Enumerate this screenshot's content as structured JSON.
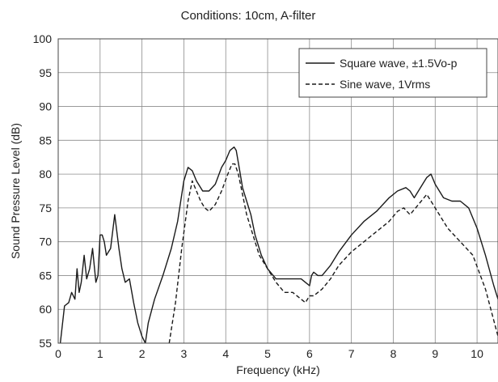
{
  "chart_data": {
    "type": "line",
    "title": "Conditions: 10cm, A-filter",
    "xlabel": "Frequency (kHz)",
    "ylabel": "Sound Pressure Level (dB)",
    "xlim": [
      0,
      10.5
    ],
    "ylim": [
      55,
      100
    ],
    "x_ticks": [
      0,
      1,
      2,
      3,
      4,
      5,
      6,
      7,
      8,
      9,
      10
    ],
    "y_ticks": [
      55,
      60,
      65,
      70,
      75,
      80,
      85,
      90,
      95,
      100
    ],
    "grid": true,
    "legend_position": "top-right",
    "series": [
      {
        "name": "Square wave, ±1.5Vo-p",
        "line_style": "solid",
        "color": "#1a1a1a",
        "x": [
          0.05,
          0.15,
          0.25,
          0.32,
          0.4,
          0.45,
          0.5,
          0.55,
          0.62,
          0.68,
          0.75,
          0.82,
          0.9,
          0.95,
          1.0,
          1.05,
          1.1,
          1.15,
          1.25,
          1.35,
          1.45,
          1.52,
          1.6,
          1.7,
          1.8,
          1.9,
          2.0,
          2.08,
          2.15,
          2.3,
          2.5,
          2.7,
          2.85,
          3.0,
          3.1,
          3.2,
          3.3,
          3.45,
          3.6,
          3.75,
          3.9,
          4.0,
          4.1,
          4.2,
          4.25,
          4.32,
          4.4,
          4.5,
          4.6,
          4.7,
          4.85,
          5.0,
          5.2,
          5.4,
          5.6,
          5.8,
          5.9,
          6.0,
          6.05,
          6.1,
          6.2,
          6.3,
          6.5,
          6.7,
          7.0,
          7.3,
          7.6,
          7.9,
          8.1,
          8.3,
          8.4,
          8.5,
          8.7,
          8.8,
          8.9,
          9.0,
          9.2,
          9.4,
          9.6,
          9.8,
          10.0,
          10.2,
          10.4,
          10.5
        ],
        "y": [
          55,
          60.5,
          61,
          62.5,
          61.5,
          66,
          62.5,
          64,
          68,
          64.5,
          66,
          69,
          64,
          65,
          71,
          71,
          70,
          68,
          69,
          74,
          69,
          66,
          64,
          64.5,
          61,
          58,
          56,
          55,
          58,
          61.5,
          65,
          69,
          73,
          79,
          81,
          80.5,
          79,
          77.5,
          77.5,
          78.5,
          81,
          82,
          83.5,
          84,
          83.5,
          81,
          78,
          76,
          74,
          71,
          68,
          66,
          64.5,
          64.5,
          64.5,
          64.5,
          64,
          63.5,
          65,
          65.5,
          65,
          65,
          66.5,
          68.5,
          71,
          73,
          74.5,
          76.5,
          77.5,
          78,
          77.5,
          76.5,
          78.5,
          79.5,
          80,
          78.5,
          76.5,
          76,
          76,
          75,
          72,
          68,
          63.5,
          61.5
        ]
      },
      {
        "name": "Sine wave, 1Vrms",
        "line_style": "dashed",
        "color": "#1a1a1a",
        "x": [
          2.65,
          2.8,
          2.95,
          3.1,
          3.2,
          3.3,
          3.4,
          3.5,
          3.6,
          3.75,
          3.9,
          4.05,
          4.15,
          4.22,
          4.3,
          4.4,
          4.5,
          4.65,
          4.8,
          5.0,
          5.2,
          5.4,
          5.6,
          5.8,
          5.9,
          6.0,
          6.1,
          6.3,
          6.5,
          6.7,
          7.0,
          7.3,
          7.6,
          7.9,
          8.1,
          8.25,
          8.4,
          8.6,
          8.8,
          9.0,
          9.3,
          9.6,
          9.9,
          10.2,
          10.5
        ],
        "y": [
          55,
          61,
          69,
          76,
          79,
          77.5,
          76,
          75,
          74.5,
          75.5,
          77.5,
          80,
          81.5,
          81.5,
          80,
          77,
          74,
          71,
          68,
          66,
          64,
          62.5,
          62.5,
          61.5,
          61,
          62,
          62,
          63,
          64.5,
          66.5,
          68.5,
          70,
          71.5,
          73,
          74.5,
          75,
          74,
          75.5,
          77,
          75,
          72,
          70,
          68,
          63,
          56
        ]
      }
    ]
  }
}
